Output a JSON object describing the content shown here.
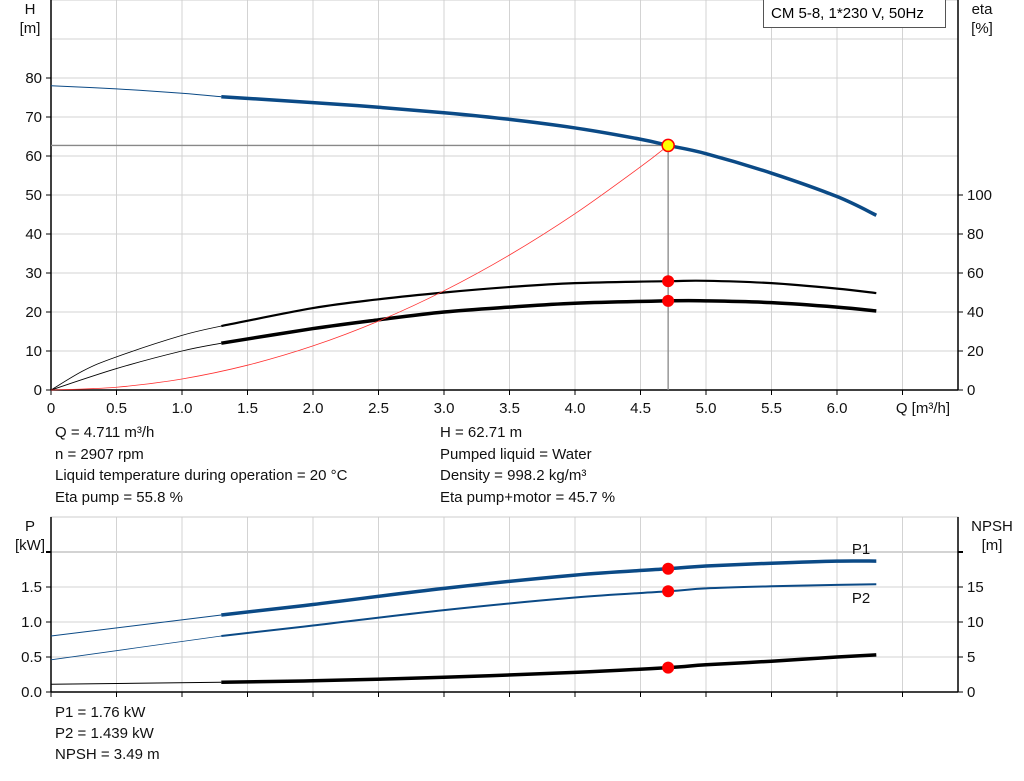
{
  "title_box": "CM 5-8, 1*230 V, 50Hz",
  "colors": {
    "head": "#0b4a86",
    "power": "#0b4a86",
    "efficiency": "#000000",
    "npsh": "#000000",
    "system": "#ff3030",
    "duty_point": "#ff0000",
    "duty_point_fill": "#ffff00",
    "grid": "#d3d3d3"
  },
  "info": {
    "left": [
      "Q = 4.711 m³/h",
      "n = 2907 rpm",
      "Liquid temperature during operation = 20 °C",
      "Eta pump = 55.8 %"
    ],
    "right": [
      "H = 62.71 m",
      "Pumped liquid = Water",
      "Density = 998.2 kg/m³",
      "Eta pump+motor = 45.7 %"
    ],
    "bottom": [
      "P1 = 1.76 kW",
      "P2 = 1.439 kW",
      "NPSH = 3.49 m"
    ]
  },
  "chart_data": [
    {
      "type": "line",
      "xlabel": "Q [m³/h]",
      "ylabel_left": "H\n[m]",
      "ylabel_right": "eta\n[%]",
      "xlim": [
        0,
        6.92
      ],
      "ylim_left": [
        0,
        100
      ],
      "ylim_right": [
        0,
        200
      ],
      "x_ticks": [
        "0",
        "0.5",
        "1.0",
        "1.5",
        "2.0",
        "2.5",
        "3.0",
        "3.5",
        "4.0",
        "4.5",
        "5.0",
        "5.5",
        "6.0"
      ],
      "y_ticks_left": [
        "0",
        "10",
        "20",
        "30",
        "40",
        "50",
        "60",
        "70",
        "80"
      ],
      "y_ticks_right": [
        "0",
        "20",
        "40",
        "60",
        "80",
        "100"
      ],
      "grid": true,
      "series": [
        {
          "key": "head",
          "axis": "left",
          "thin_until": 1.3,
          "x": [
            0,
            0.5,
            1.0,
            1.3,
            2.0,
            2.5,
            3.0,
            3.5,
            4.0,
            4.5,
            4.711,
            5.0,
            5.5,
            6.0,
            6.3
          ],
          "y": [
            78,
            77.2,
            76.1,
            75.2,
            73.7,
            72.5,
            71.1,
            69.4,
            67.2,
            64.3,
            62.71,
            60.6,
            55.6,
            49.6,
            44.8
          ]
        },
        {
          "key": "eta_pump",
          "axis": "right",
          "thin_until": 1.3,
          "x": [
            0,
            0.25,
            0.5,
            1.0,
            1.3,
            2.0,
            2.5,
            3.0,
            3.5,
            4.0,
            4.711,
            5.0,
            5.5,
            6.0,
            6.3
          ],
          "y": [
            0,
            10,
            17,
            28,
            32.8,
            42,
            46.5,
            50,
            52.8,
            54.8,
            55.8,
            56,
            54.8,
            52,
            49.7
          ]
        },
        {
          "key": "eta_total",
          "axis": "right",
          "thin_until": 1.3,
          "x": [
            0,
            0.5,
            1.0,
            1.3,
            2.0,
            2.5,
            3.0,
            3.5,
            4.0,
            4.711,
            5.0,
            5.5,
            6.0,
            6.3
          ],
          "y": [
            0,
            11,
            20,
            24,
            31.5,
            36,
            40,
            42.5,
            44.5,
            45.7,
            45.7,
            44.8,
            42.5,
            40.5
          ]
        },
        {
          "key": "system",
          "axis": "left",
          "x": [
            0,
            0.5,
            1.0,
            1.5,
            2.0,
            2.5,
            3.0,
            3.5,
            4.0,
            4.5,
            4.711
          ],
          "y": [
            0,
            0.71,
            2.83,
            6.36,
            11.3,
            17.66,
            25.43,
            34.61,
            45.2,
            57.22,
            62.71
          ]
        }
      ],
      "duty_point": {
        "Q": 4.711,
        "H": 62.71,
        "eta_pump": 55.8,
        "eta_total": 45.7
      }
    },
    {
      "type": "line",
      "ylabel_left": "P\n[kW]",
      "ylabel_right": "NPSH\n[m]",
      "xlim": [
        0,
        6.92
      ],
      "ylim_left": [
        0,
        2.5
      ],
      "ylim_right": [
        0,
        25
      ],
      "y_ticks_left": [
        "0.0",
        "0.5",
        "1.0",
        "1.5"
      ],
      "y_ticks_right": [
        "0",
        "5",
        "10",
        "15"
      ],
      "grid": true,
      "series": [
        {
          "key": "P1",
          "name": "P1",
          "axis": "left",
          "thin_until": 1.3,
          "x": [
            0,
            1.3,
            2.0,
            3.0,
            4.0,
            4.711,
            5.0,
            5.5,
            6.0,
            6.3
          ],
          "y": [
            0.8,
            1.1,
            1.25,
            1.48,
            1.67,
            1.76,
            1.8,
            1.84,
            1.87,
            1.87
          ]
        },
        {
          "key": "P2",
          "name": "P2",
          "axis": "left",
          "thin_until": 1.3,
          "x": [
            0,
            1.3,
            2.0,
            3.0,
            4.0,
            4.711,
            5.0,
            5.5,
            6.0,
            6.3
          ],
          "y": [
            0.46,
            0.8,
            0.95,
            1.17,
            1.35,
            1.439,
            1.48,
            1.51,
            1.53,
            1.54
          ]
        },
        {
          "key": "NPSH",
          "axis": "right",
          "thin_until": 1.3,
          "x": [
            0,
            1.3,
            2.0,
            3.0,
            4.0,
            4.711,
            5.0,
            5.5,
            6.0,
            6.3
          ],
          "y": [
            1.1,
            1.4,
            1.6,
            2.1,
            2.8,
            3.49,
            3.9,
            4.4,
            5.0,
            5.3
          ]
        }
      ],
      "duty_point": {
        "Q": 4.711,
        "P1": 1.76,
        "P2": 1.439,
        "NPSH": 3.49
      }
    }
  ]
}
